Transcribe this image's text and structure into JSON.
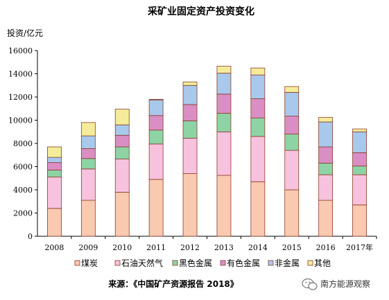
{
  "chart_data": {
    "type": "bar",
    "stacked": true,
    "title": "采矿业固定资产投资变化",
    "ylabel": "投资/亿元",
    "xlabel": "",
    "ylim": [
      0,
      16000
    ],
    "yticks": [
      0,
      2000,
      4000,
      6000,
      8000,
      10000,
      12000,
      14000,
      16000
    ],
    "categories": [
      "2008",
      "2009",
      "2010",
      "2011",
      "2012",
      "2013",
      "2014",
      "2015",
      "2016",
      "2017年"
    ],
    "legend_position": "bottom",
    "grid": false,
    "series": [
      {
        "name": "煤炭",
        "color": "#f9c9b0",
        "values": [
          2400,
          3100,
          3800,
          4900,
          5400,
          5250,
          4700,
          4000,
          3100,
          2700
        ]
      },
      {
        "name": "石油天然气",
        "color": "#f7c2dd",
        "values": [
          2700,
          2700,
          2850,
          3050,
          3050,
          3750,
          3900,
          3400,
          2200,
          2600
        ]
      },
      {
        "name": "黑色金属",
        "color": "#8dd3a4",
        "values": [
          600,
          900,
          1050,
          1200,
          1500,
          1600,
          1600,
          1400,
          1000,
          750
        ]
      },
      {
        "name": "有色金属",
        "color": "#d98fc4",
        "values": [
          650,
          850,
          1000,
          1250,
          1400,
          1650,
          1650,
          1550,
          1400,
          1150
        ]
      },
      {
        "name": "非金属",
        "color": "#a8c8ec",
        "values": [
          450,
          1100,
          900,
          1350,
          1650,
          1800,
          2050,
          2050,
          2150,
          1800
        ]
      },
      {
        "name": "其他",
        "color": "#f4ec9a",
        "values": [
          900,
          1150,
          1350,
          50,
          300,
          600,
          600,
          500,
          400,
          250
        ]
      }
    ]
  },
  "source": "来源：《中国矿产资源报告 2018》",
  "watermark": "南方能源观察",
  "watermark_icon": "wechat-bubble-icon"
}
